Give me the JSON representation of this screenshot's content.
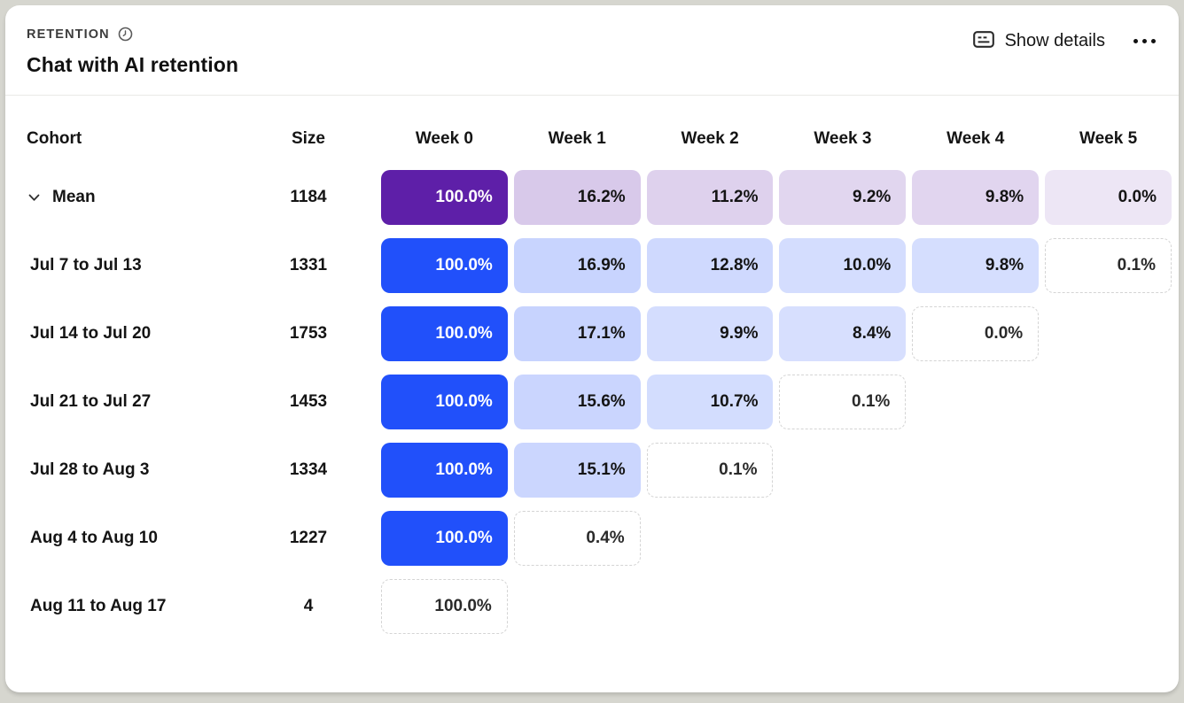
{
  "card": {
    "kicker": "RETENTION",
    "title": "Chat with AI retention",
    "actions": {
      "show_details_label": "Show details"
    }
  },
  "table": {
    "columns": {
      "cohort": "Cohort",
      "size": "Size",
      "weeks": [
        "Week 0",
        "Week 1",
        "Week 2",
        "Week 3",
        "Week 4",
        "Week 5"
      ]
    }
  },
  "chart_data": {
    "type": "table",
    "title": "Chat with AI retention",
    "unit": "percent",
    "week_columns": [
      "Week 0",
      "Week 1",
      "Week 2",
      "Week 3",
      "Week 4",
      "Week 5"
    ],
    "rows": [
      {
        "cohort": "Mean",
        "size": 1184,
        "is_mean": true,
        "values": [
          100.0,
          16.2,
          11.2,
          9.2,
          9.8,
          0.0
        ],
        "incomplete": [
          false,
          false,
          false,
          false,
          false,
          false
        ]
      },
      {
        "cohort": "Jul 7 to Jul 13",
        "size": 1331,
        "is_mean": false,
        "values": [
          100.0,
          16.9,
          12.8,
          10.0,
          9.8,
          0.1
        ],
        "incomplete": [
          false,
          false,
          false,
          false,
          false,
          true
        ]
      },
      {
        "cohort": "Jul 14 to Jul 20",
        "size": 1753,
        "is_mean": false,
        "values": [
          100.0,
          17.1,
          9.9,
          8.4,
          0.0
        ],
        "incomplete": [
          false,
          false,
          false,
          false,
          true
        ]
      },
      {
        "cohort": "Jul 21 to Jul 27",
        "size": 1453,
        "is_mean": false,
        "values": [
          100.0,
          15.6,
          10.7,
          0.1
        ],
        "incomplete": [
          false,
          false,
          false,
          true
        ]
      },
      {
        "cohort": "Jul 28 to Aug 3",
        "size": 1334,
        "is_mean": false,
        "values": [
          100.0,
          15.1,
          0.1
        ],
        "incomplete": [
          false,
          false,
          true
        ]
      },
      {
        "cohort": "Aug 4 to Aug 10",
        "size": 1227,
        "is_mean": false,
        "values": [
          100.0,
          0.4
        ],
        "incomplete": [
          false,
          true
        ]
      },
      {
        "cohort": "Aug 11 to Aug 17",
        "size": 4,
        "is_mean": false,
        "values": [
          100.0
        ],
        "incomplete": [
          true
        ]
      }
    ]
  },
  "colors": {
    "mean_base": "#5E1FA8",
    "cohort_base": "#2150FA",
    "dashed_border": "#D4D4D4",
    "card_bg": "#FFFFFF",
    "page_bg": "#D6D6CF",
    "light_cell_text": "#141414",
    "dark_cell_text": "#FFFFFF"
  }
}
